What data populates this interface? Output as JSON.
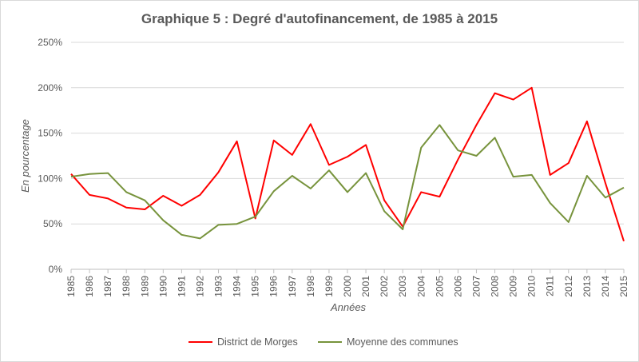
{
  "chart_data": {
    "type": "line",
    "title": "Graphique 5 : Degré d'autofinancement, de 1985 à 2015",
    "xlabel": "Années",
    "ylabel": "En pourcentage",
    "ylim": [
      0,
      250
    ],
    "yticks": [
      0,
      50,
      100,
      150,
      200,
      250
    ],
    "ytick_labels": [
      "0%",
      "50%",
      "100%",
      "150%",
      "200%",
      "250%"
    ],
    "grid": "horizontal",
    "legend_position": "bottom",
    "categories": [
      "1985",
      "1986",
      "1987",
      "1988",
      "1989",
      "1990",
      "1991",
      "1992",
      "1993",
      "1994",
      "1995",
      "1996",
      "1997",
      "1998",
      "1999",
      "2000",
      "2001",
      "2002",
      "2003",
      "2004",
      "2005",
      "2006",
      "2007",
      "2008",
      "2009",
      "2010",
      "2011",
      "2012",
      "2013",
      "2014",
      "2015"
    ],
    "series": [
      {
        "name": "District de Morges",
        "color": "#ff0000",
        "values": [
          105,
          82,
          78,
          68,
          66,
          81,
          70,
          82,
          107,
          141,
          56,
          142,
          126,
          160,
          115,
          124,
          137,
          76,
          47,
          85,
          80,
          121,
          159,
          194,
          187,
          200,
          104,
          117,
          163,
          95,
          31
        ]
      },
      {
        "name": "Moyenne des communes",
        "color": "#77933c",
        "values": [
          102,
          105,
          106,
          85,
          76,
          54,
          38,
          34,
          49,
          50,
          58,
          86,
          103,
          89,
          109,
          85,
          106,
          64,
          44,
          134,
          159,
          131,
          125,
          145,
          102,
          104,
          73,
          52,
          103,
          79,
          90
        ]
      }
    ]
  }
}
